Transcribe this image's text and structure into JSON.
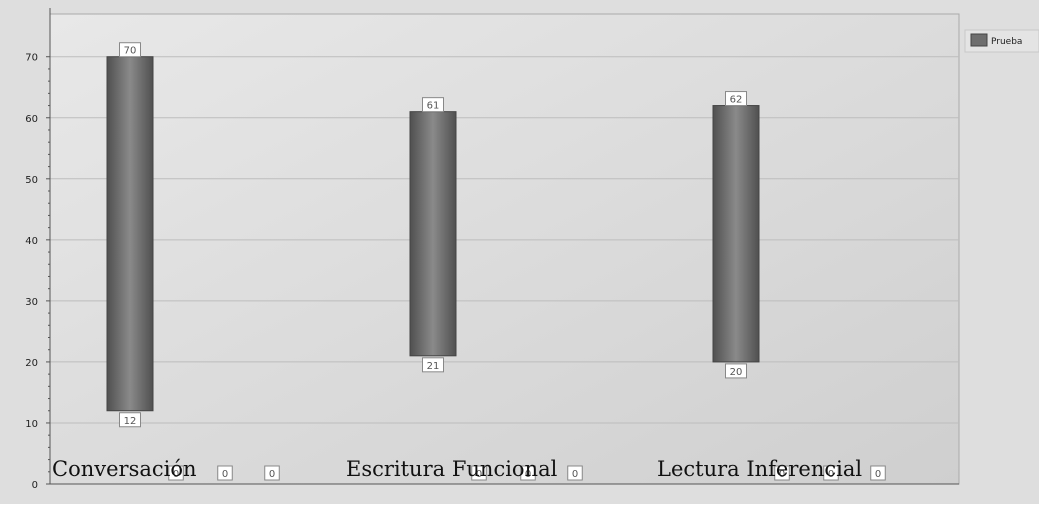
{
  "chart_data": {
    "type": "bar",
    "subtype": "floating-range",
    "categories": [
      "Conversación",
      "Escritura Funcional",
      "Lectura Inferencial"
    ],
    "series": [
      {
        "name": "Prueba",
        "low": [
          12,
          21,
          20
        ],
        "high": [
          70,
          61,
          62
        ]
      }
    ],
    "zero_labels": [
      "0",
      "0",
      "0",
      "0",
      "0",
      "0",
      "0",
      "0",
      "0"
    ],
    "yticks": [
      "0",
      "10",
      "20",
      "30",
      "40",
      "50",
      "60",
      "70"
    ],
    "ylim": [
      0,
      77
    ],
    "grid": true,
    "legend": "top-right",
    "colors": {
      "bar": "#6e6e6e",
      "bar_dark": "#505050",
      "bar_light": "#8a8a8a",
      "plot_bg_light": "#e8e8e8",
      "plot_bg_dark": "#cfcfcf",
      "outer_bg": "#dedede",
      "gridline": "#bdbdbd",
      "axis": "#555555",
      "label_box_bg": "#ffffff",
      "label_box_border": "#888888",
      "text": "#222222"
    }
  }
}
